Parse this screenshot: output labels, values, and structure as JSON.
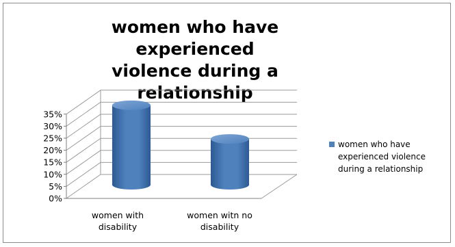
{
  "chart_data": {
    "type": "bar",
    "style": "3d-cylinder",
    "title": "women who have experienced violence during a relationship",
    "title_lines": [
      "women who have experienced",
      "violence during a relationship"
    ],
    "categories": [
      "women with disability",
      "women witn no disability"
    ],
    "category_lines": [
      [
        "women with",
        "disability"
      ],
      [
        "women witn no",
        "disability"
      ]
    ],
    "series": [
      {
        "name": "women who have experienced violence during a relationship",
        "values": [
          0.33,
          0.19
        ]
      }
    ],
    "yticks": [
      "0%",
      "5%",
      "10%",
      "15%",
      "20%",
      "25%",
      "30%",
      "35%"
    ],
    "ylim": [
      0,
      0.35
    ],
    "grid": true,
    "legend_position": "right",
    "colors": {
      "series": "#4f81bd",
      "series_dark": "#2c5a93",
      "series_light": "#7fa6d6",
      "grid": "#9a9a9a",
      "axis": "#7f7f7f"
    }
  },
  "legend": {
    "label_lines": [
      "women who have",
      "experienced violence",
      "during a relationship"
    ]
  }
}
